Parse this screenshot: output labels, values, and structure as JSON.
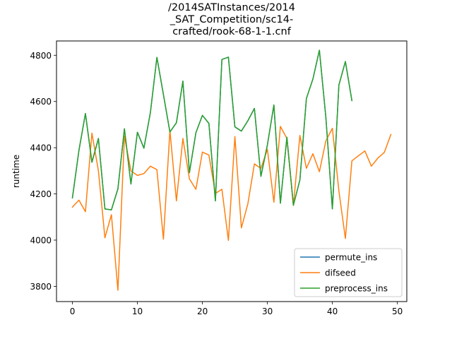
{
  "chart_data": {
    "type": "line",
    "title_lines": [
      "/2014SATInstances/2014",
      "_SAT_Competition/sc14-",
      "crafted/rook-68-1-1.cnf"
    ],
    "xlabel": "",
    "ylabel": "runtime",
    "xlim": [
      -2.45,
      51.45
    ],
    "ylim": [
      3734,
      4862
    ],
    "xticks": [
      0,
      10,
      20,
      30,
      40,
      50
    ],
    "yticks": [
      3800,
      4000,
      4200,
      4400,
      4600,
      4800
    ],
    "grid": false,
    "legend_position": "lower-right",
    "series": [
      {
        "name": "permute_ins",
        "color": "#1f77b4",
        "x": [
          0,
          1,
          2,
          3,
          4,
          5,
          6,
          7,
          8,
          9,
          10,
          11,
          12,
          13,
          14,
          15,
          16,
          17,
          18,
          19,
          20,
          21,
          22,
          23,
          24,
          25,
          26,
          27,
          28,
          29,
          30,
          31,
          32,
          33,
          34,
          35,
          36,
          37,
          38,
          39,
          40,
          41,
          42,
          43
        ],
        "y": [
          4183,
          4388,
          4548,
          4337,
          4440,
          4135,
          4131,
          4222,
          4482,
          4243,
          4467,
          4398,
          4553,
          4791,
          4630,
          4468,
          4508,
          4688,
          4292,
          4465,
          4540,
          4505,
          4170,
          4782,
          4792,
          4490,
          4472,
          4517,
          4570,
          4276,
          4412,
          4585,
          4160,
          4445,
          4151,
          4260,
          4613,
          4697,
          4822,
          4530,
          4135,
          4671,
          4773,
          4604
        ]
      },
      {
        "name": "difseed",
        "color": "#ff7f0e",
        "x": [
          0,
          1,
          2,
          3,
          4,
          5,
          6,
          7,
          8,
          9,
          10,
          11,
          12,
          13,
          14,
          15,
          16,
          17,
          18,
          19,
          20,
          21,
          22,
          23,
          24,
          25,
          26,
          27,
          28,
          29,
          30,
          31,
          32,
          33,
          34,
          35,
          36,
          37,
          38,
          39,
          40,
          41,
          42,
          43,
          44,
          45,
          46,
          47,
          48,
          49
        ],
        "y": [
          4143,
          4173,
          4123,
          4463,
          4300,
          4010,
          4110,
          3783,
          4450,
          4300,
          4280,
          4288,
          4320,
          4305,
          4004,
          4475,
          4170,
          4440,
          4265,
          4220,
          4381,
          4368,
          4202,
          4220,
          3999,
          4448,
          4053,
          4158,
          4330,
          4310,
          4393,
          4164,
          4492,
          4440,
          4150,
          4453,
          4311,
          4374,
          4296,
          4430,
          4484,
          4213,
          4007,
          4343,
          4365,
          4386,
          4320,
          4355,
          4380,
          4457
        ]
      },
      {
        "name": "preprocess_ins",
        "color": "#2ca02c",
        "x": [
          0,
          1,
          2,
          3,
          4,
          5,
          6,
          7,
          8,
          9,
          10,
          11,
          12,
          13,
          14,
          15,
          16,
          17,
          18,
          19,
          20,
          21,
          22,
          23,
          24,
          25,
          26,
          27,
          28,
          29,
          30,
          31,
          32,
          33,
          34,
          35,
          36,
          37,
          38,
          39,
          40,
          41,
          42,
          43
        ],
        "y": [
          4183,
          4388,
          4548,
          4337,
          4440,
          4135,
          4131,
          4222,
          4482,
          4243,
          4467,
          4398,
          4553,
          4791,
          4630,
          4468,
          4508,
          4688,
          4292,
          4465,
          4540,
          4505,
          4170,
          4782,
          4792,
          4490,
          4472,
          4517,
          4570,
          4276,
          4412,
          4585,
          4160,
          4445,
          4151,
          4260,
          4613,
          4697,
          4822,
          4530,
          4135,
          4671,
          4773,
          4604
        ]
      }
    ]
  }
}
